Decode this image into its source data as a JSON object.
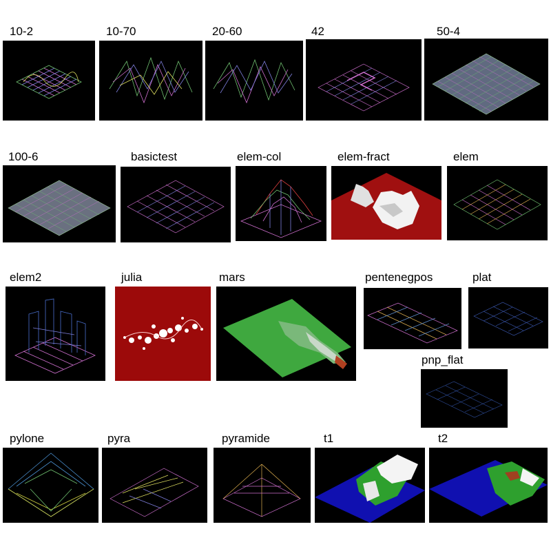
{
  "thumbnails": [
    {
      "label": "10-2",
      "style": "wire-wave-low"
    },
    {
      "label": "10-70",
      "style": "wire-wave-high"
    },
    {
      "label": "20-60",
      "style": "wire-wave-high"
    },
    {
      "label": "42",
      "style": "wire-flat-path"
    },
    {
      "label": "50-4",
      "style": "wire-dense-noise"
    },
    {
      "label": "100-6",
      "style": "wire-dense-noise"
    },
    {
      "label": "basictest",
      "style": "wire-flat"
    },
    {
      "label": "elem-col",
      "style": "wire-hill"
    },
    {
      "label": "elem-fract",
      "style": "red-terrain-white-peaks"
    },
    {
      "label": "elem",
      "style": "wire-flat"
    },
    {
      "label": "elem2",
      "style": "wire-pillars"
    },
    {
      "label": "julia",
      "style": "julia-set-red"
    },
    {
      "label": "mars",
      "style": "green-terrain"
    },
    {
      "label": "pentenegpos",
      "style": "wire-flat-strip"
    },
    {
      "label": "plat",
      "style": "wire-flat-blue"
    },
    {
      "label": "pnp_flat",
      "style": "wire-flat-blue"
    },
    {
      "label": "pylone",
      "style": "wire-pylone"
    },
    {
      "label": "pyra",
      "style": "wire-pyra"
    },
    {
      "label": "pyramide",
      "style": "wire-pyramide"
    },
    {
      "label": "t1",
      "style": "blue-green-terrain"
    },
    {
      "label": "t2",
      "style": "blue-green-terrain"
    }
  ],
  "colors": {
    "background": "#ffffff",
    "frame": "#000000",
    "wire_pink": "#d070d0",
    "wire_green": "#70c070",
    "wire_blue": "#4060c0",
    "red_plane": "#a01010",
    "julia_bg": "#9c0a0a",
    "mars_green": "#3fa83f",
    "water_blue": "#1010b0"
  }
}
